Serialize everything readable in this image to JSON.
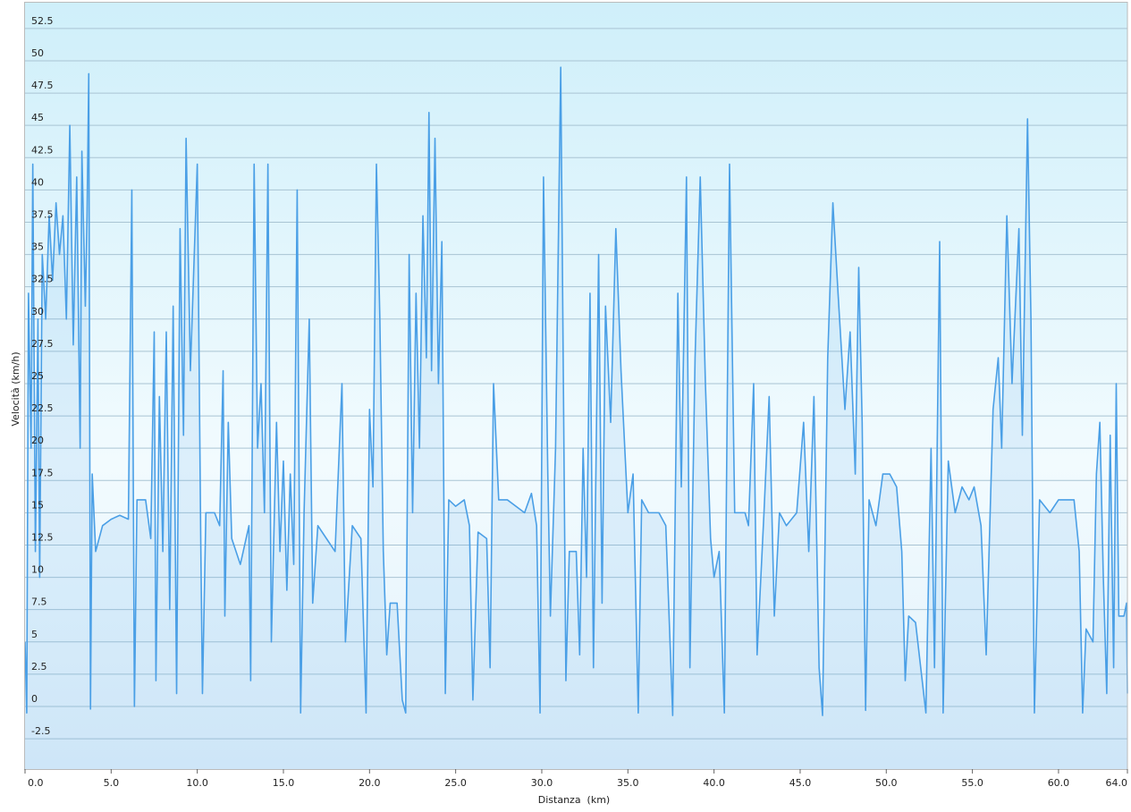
{
  "chart_data": {
    "type": "line",
    "xlabel": "Distanza  (km)",
    "ylabel": "Velocità (km/h)",
    "x": [
      0,
      0.1,
      0.2,
      0.35,
      0.45,
      0.6,
      0.75,
      0.85,
      1.0,
      1.2,
      1.4,
      1.6,
      1.8,
      2.0,
      2.2,
      2.4,
      2.6,
      2.8,
      3.0,
      3.2,
      3.3,
      3.5,
      3.6,
      3.7,
      3.8,
      3.9,
      4.1,
      4.5,
      5.0,
      5.5,
      6.0,
      6.2,
      6.35,
      6.5,
      7.0,
      7.3,
      7.5,
      7.6,
      7.8,
      8.0,
      8.2,
      8.4,
      8.6,
      8.8,
      9.0,
      9.2,
      9.35,
      9.6,
      9.8,
      10.0,
      10.2,
      10.3,
      10.5,
      11.0,
      11.3,
      11.5,
      11.6,
      11.8,
      12.0,
      12.5,
      13.0,
      13.1,
      13.3,
      13.5,
      13.7,
      13.9,
      14.1,
      14.3,
      14.6,
      14.8,
      15.0,
      15.2,
      15.4,
      15.6,
      15.8,
      16.0,
      16.2,
      16.5,
      16.7,
      17.0,
      17.5,
      18.0,
      18.4,
      18.6,
      19.0,
      19.5,
      19.8,
      20.0,
      20.2,
      20.4,
      20.6,
      20.8,
      21.0,
      21.2,
      21.6,
      21.9,
      22.1,
      22.3,
      22.5,
      22.7,
      22.9,
      23.1,
      23.3,
      23.45,
      23.6,
      23.8,
      24.0,
      24.2,
      24.4,
      24.6,
      25.0,
      25.5,
      25.8,
      26.0,
      26.3,
      26.8,
      27.0,
      27.2,
      27.5,
      28.0,
      28.5,
      29.0,
      29.4,
      29.7,
      29.9,
      30.1,
      30.35,
      30.5,
      30.8,
      31.1,
      31.4,
      31.6,
      32.0,
      32.2,
      32.4,
      32.6,
      32.8,
      33.0,
      33.3,
      33.5,
      33.7,
      34.0,
      34.3,
      34.6,
      35.0,
      35.3,
      35.6,
      35.8,
      36.2,
      36.8,
      37.2,
      37.6,
      37.9,
      38.1,
      38.4,
      38.6,
      38.9,
      39.2,
      39.5,
      39.8,
      40.0,
      40.3,
      40.6,
      40.9,
      41.2,
      41.8,
      42.0,
      42.3,
      42.5,
      42.9,
      43.2,
      43.5,
      43.8,
      44.2,
      44.8,
      45.2,
      45.5,
      45.8,
      46.1,
      46.3,
      46.6,
      46.9,
      47.2,
      47.6,
      47.9,
      48.2,
      48.4,
      48.6,
      48.8,
      49.0,
      49.4,
      49.8,
      50.2,
      50.6,
      50.9,
      51.1,
      51.3,
      51.7,
      52.0,
      52.3,
      52.6,
      52.8,
      53.1,
      53.3,
      53.6,
      54.0,
      54.4,
      54.8,
      55.1,
      55.5,
      55.8,
      56.2,
      56.5,
      56.7,
      57.0,
      57.3,
      57.7,
      57.9,
      58.2,
      58.4,
      58.6,
      58.9,
      59.5,
      60.0,
      60.5,
      60.9,
      61.2,
      61.4,
      61.6,
      62.0,
      62.2,
      62.4,
      62.6,
      62.8,
      63.0,
      63.2,
      63.35,
      63.5,
      63.8,
      63.95,
      64.0
    ],
    "series": [
      {
        "color": "#4a9fe6",
        "values": [
          5,
          -0.5,
          32,
          20,
          42,
          12,
          30,
          10,
          35,
          30,
          38,
          33,
          39,
          35,
          38,
          30,
          45,
          28,
          41,
          20,
          43,
          31,
          38,
          49,
          -0.2,
          18,
          12,
          14,
          14.5,
          14.8,
          14.5,
          40,
          0,
          16,
          16,
          13,
          29,
          2,
          24,
          12,
          29,
          7.5,
          31,
          1,
          37,
          21,
          44,
          26,
          34,
          42,
          13,
          1,
          15,
          15,
          14,
          26,
          7,
          22,
          13,
          11,
          14,
          2,
          42,
          20,
          25,
          15,
          42,
          5,
          22,
          12,
          19,
          9,
          18,
          11,
          40,
          -0.5,
          15,
          30,
          8,
          14,
          13,
          12,
          25,
          5,
          14,
          13,
          -0.5,
          23,
          17,
          42,
          30,
          12,
          4,
          8,
          8,
          0.5,
          -0.5,
          35,
          15,
          32,
          20,
          38,
          27,
          46,
          26,
          44,
          25,
          36,
          1,
          16,
          15.5,
          16,
          14,
          0.5,
          13.5,
          13,
          3,
          25,
          16,
          16,
          15.5,
          15,
          16.5,
          14,
          -0.5,
          41,
          18,
          7,
          20,
          49.5,
          2,
          12,
          12,
          4,
          20,
          10,
          32,
          3,
          35,
          8,
          31,
          22,
          37,
          26,
          15,
          18,
          -0.5,
          16,
          15,
          15,
          14,
          -0.7,
          32,
          17,
          41,
          3,
          27,
          41,
          25,
          13,
          10,
          12,
          -0.5,
          42,
          15,
          15,
          14,
          25,
          4,
          15,
          24,
          7,
          15,
          14,
          15,
          22,
          12,
          24,
          3,
          -0.7,
          27,
          39,
          32,
          23,
          29,
          18,
          34,
          22,
          -0.3,
          16,
          14,
          18,
          18,
          17,
          12,
          2,
          7,
          6.5,
          3,
          -0.5,
          20,
          3,
          36,
          -0.5,
          19,
          15,
          17,
          16,
          17,
          14,
          4,
          23,
          27,
          20,
          38,
          25,
          37,
          21,
          45.5,
          30,
          -0.5,
          16,
          15,
          16,
          16,
          16,
          12,
          -0.5,
          6,
          5,
          18,
          22,
          10,
          1,
          21,
          3,
          25,
          7,
          7,
          8,
          1
        ]
      }
    ],
    "xlim": [
      0,
      64
    ],
    "xticks": [
      {
        "value": 0,
        "label": "0.0"
      },
      {
        "value": 5,
        "label": "5.0"
      },
      {
        "value": 10,
        "label": "10.0"
      },
      {
        "value": 15,
        "label": "15.0"
      },
      {
        "value": 20,
        "label": "20.0"
      },
      {
        "value": 25,
        "label": "25.0"
      },
      {
        "value": 30,
        "label": "30.0"
      },
      {
        "value": 35,
        "label": "35.0"
      },
      {
        "value": 40,
        "label": "40.0"
      },
      {
        "value": 45,
        "label": "45.0"
      },
      {
        "value": 50,
        "label": "50.0"
      },
      {
        "value": 55,
        "label": "55.0"
      },
      {
        "value": 60,
        "label": "60.0"
      },
      {
        "value": 64,
        "label": "64.0"
      }
    ],
    "ylim": [
      -4.85,
      54.5
    ],
    "yticks": [
      -2.5,
      0,
      2.5,
      5,
      7.5,
      10,
      12.5,
      15,
      17.5,
      20,
      22.5,
      25,
      27.5,
      30,
      32.5,
      35,
      37.5,
      40,
      42.5,
      45,
      47.5,
      50,
      52.5
    ],
    "grid": true
  }
}
